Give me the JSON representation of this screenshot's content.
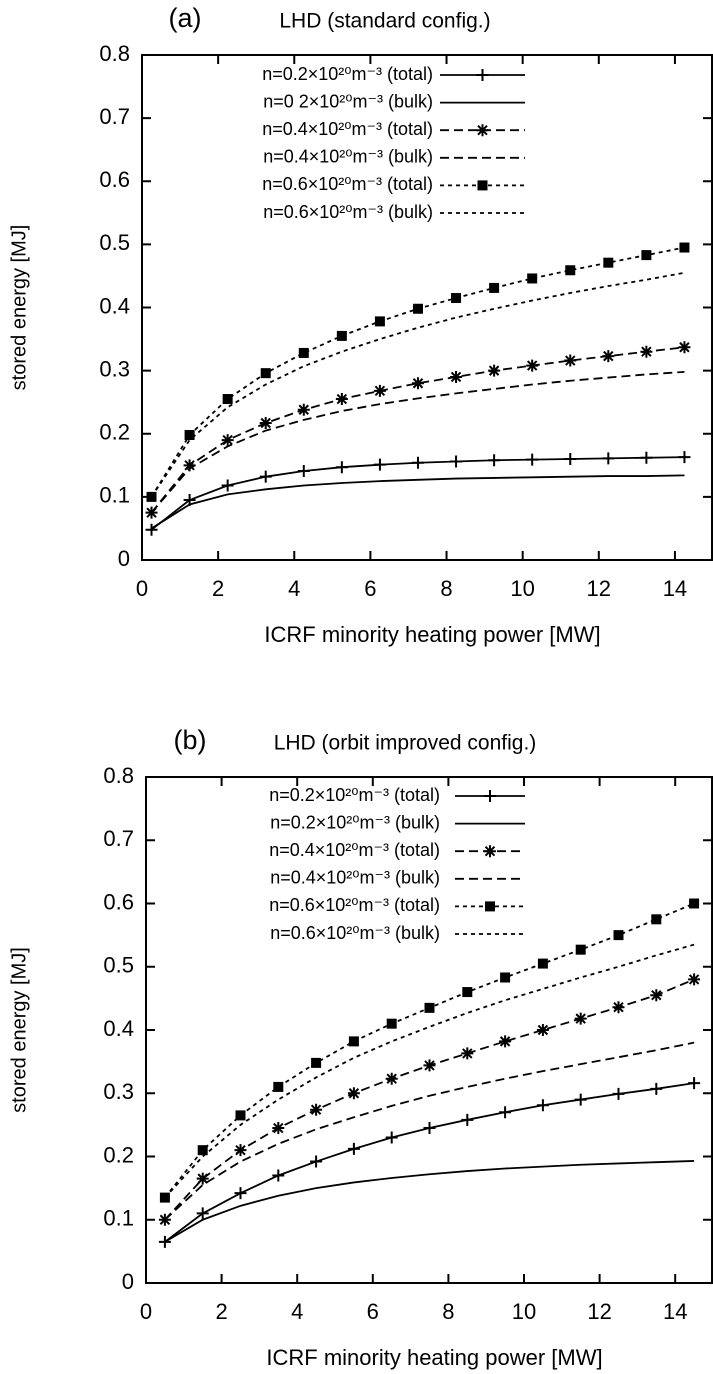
{
  "chart_data": [
    {
      "type": "line",
      "label": "(a)",
      "title": "LHD (standard config.)",
      "xlabel": "ICRF minority heating power [MW]",
      "ylabel": "stored energy [MJ]",
      "xlim": [
        0,
        15
      ],
      "ylim": [
        0,
        0.8
      ],
      "xticks": [
        0,
        2,
        4,
        6,
        8,
        10,
        12,
        14
      ],
      "yticks": [
        0,
        0.1,
        0.2,
        0.3,
        0.4,
        0.5,
        0.6,
        0.7,
        0.8
      ],
      "legend": "upper left",
      "x": [
        0.25,
        1.25,
        2.25,
        3.25,
        4.25,
        5.25,
        6.25,
        7.25,
        8.25,
        9.25,
        10.25,
        11.25,
        12.25,
        13.25,
        14.25
      ],
      "series": [
        {
          "name": "n=0.2×10²⁰m⁻³ (total)",
          "color": "#000",
          "dash": "solid",
          "marker": "plus",
          "values": [
            0.048,
            0.095,
            0.118,
            0.132,
            0.141,
            0.147,
            0.151,
            0.154,
            0.156,
            0.158,
            0.159,
            0.16,
            0.161,
            0.162,
            0.163
          ]
        },
        {
          "name": "n=0 2×10²⁰m⁻³ (bulk)",
          "color": "#000",
          "dash": "solid",
          "values": [
            0.05,
            0.088,
            0.104,
            0.112,
            0.118,
            0.122,
            0.125,
            0.127,
            0.129,
            0.13,
            0.131,
            0.132,
            0.133,
            0.133,
            0.134
          ]
        },
        {
          "name": "n=0.4×10²⁰m⁻³ (total)",
          "color": "#000",
          "dash": "dashed",
          "marker": "star",
          "values": [
            0.075,
            0.15,
            0.19,
            0.217,
            0.238,
            0.255,
            0.268,
            0.28,
            0.29,
            0.3,
            0.308,
            0.316,
            0.323,
            0.33,
            0.337
          ]
        },
        {
          "name": "n=0.4×10²⁰m⁻³ (bulk)",
          "color": "#000",
          "dash": "dashed",
          "values": [
            0.075,
            0.145,
            0.18,
            0.205,
            0.222,
            0.236,
            0.247,
            0.256,
            0.264,
            0.271,
            0.278,
            0.284,
            0.289,
            0.294,
            0.298
          ]
        },
        {
          "name": "n=0.6×10²⁰m⁻³ (total)",
          "color": "#000",
          "dash": "dotted",
          "marker": "square",
          "values": [
            0.1,
            0.198,
            0.255,
            0.296,
            0.328,
            0.355,
            0.378,
            0.398,
            0.415,
            0.431,
            0.446,
            0.459,
            0.471,
            0.483,
            0.495
          ]
        },
        {
          "name": "n=0.6×10²⁰m⁻³ (bulk)",
          "color": "#000",
          "dash": "dotted",
          "values": [
            0.1,
            0.19,
            0.242,
            0.278,
            0.307,
            0.33,
            0.35,
            0.368,
            0.384,
            0.398,
            0.411,
            0.423,
            0.434,
            0.444,
            0.455
          ]
        }
      ]
    },
    {
      "type": "line",
      "label": "(b)",
      "title": "LHD (orbit improved config.)",
      "xlabel": "ICRF minority heating power [MW]",
      "ylabel": "stored energy [MJ]",
      "xlim": [
        0,
        15
      ],
      "ylim": [
        0,
        0.8
      ],
      "xticks": [
        0,
        2,
        4,
        6,
        8,
        10,
        12,
        14
      ],
      "yticks": [
        0,
        0.1,
        0.2,
        0.3,
        0.4,
        0.5,
        0.6,
        0.7,
        0.8
      ],
      "legend": "upper left",
      "x": [
        0.5,
        1.5,
        2.5,
        3.5,
        4.5,
        5.5,
        6.5,
        7.5,
        8.5,
        9.5,
        10.5,
        11.5,
        12.5,
        13.5,
        14.5
      ],
      "series": [
        {
          "name": "n=0.2×10²⁰m⁻³ (total)",
          "color": "#000",
          "dash": "solid",
          "marker": "plus",
          "values": [
            0.065,
            0.11,
            0.142,
            0.17,
            0.192,
            0.212,
            0.23,
            0.245,
            0.258,
            0.27,
            0.281,
            0.29,
            0.299,
            0.307,
            0.316
          ]
        },
        {
          "name": "n=0.2×10²⁰m⁻³ (bulk)",
          "color": "#000",
          "dash": "solid",
          "values": [
            0.065,
            0.1,
            0.122,
            0.138,
            0.15,
            0.159,
            0.166,
            0.172,
            0.177,
            0.181,
            0.184,
            0.187,
            0.189,
            0.191,
            0.193
          ]
        },
        {
          "name": "n=0.4×10²⁰m⁻³ (total)",
          "color": "#000",
          "dash": "dashed",
          "marker": "star",
          "values": [
            0.1,
            0.165,
            0.21,
            0.245,
            0.274,
            0.3,
            0.323,
            0.344,
            0.363,
            0.382,
            0.4,
            0.418,
            0.436,
            0.455,
            0.48
          ]
        },
        {
          "name": "n=0.4×10²⁰m⁻³ (bulk)",
          "color": "#000",
          "dash": "dashed",
          "values": [
            0.1,
            0.155,
            0.192,
            0.22,
            0.243,
            0.262,
            0.28,
            0.296,
            0.31,
            0.323,
            0.335,
            0.346,
            0.357,
            0.368,
            0.38
          ]
        },
        {
          "name": "n=0.6×10²⁰m⁻³ (total)",
          "color": "#000",
          "dash": "dotted",
          "marker": "square",
          "values": [
            0.135,
            0.21,
            0.265,
            0.31,
            0.348,
            0.382,
            0.41,
            0.435,
            0.46,
            0.483,
            0.505,
            0.527,
            0.55,
            0.575,
            0.6
          ]
        },
        {
          "name": "n=0.6×10²⁰m⁻³ (bulk)",
          "color": "#000",
          "dash": "dotted",
          "values": [
            0.135,
            0.2,
            0.25,
            0.29,
            0.325,
            0.356,
            0.382,
            0.405,
            0.427,
            0.447,
            0.465,
            0.483,
            0.5,
            0.518,
            0.535
          ]
        }
      ]
    }
  ]
}
